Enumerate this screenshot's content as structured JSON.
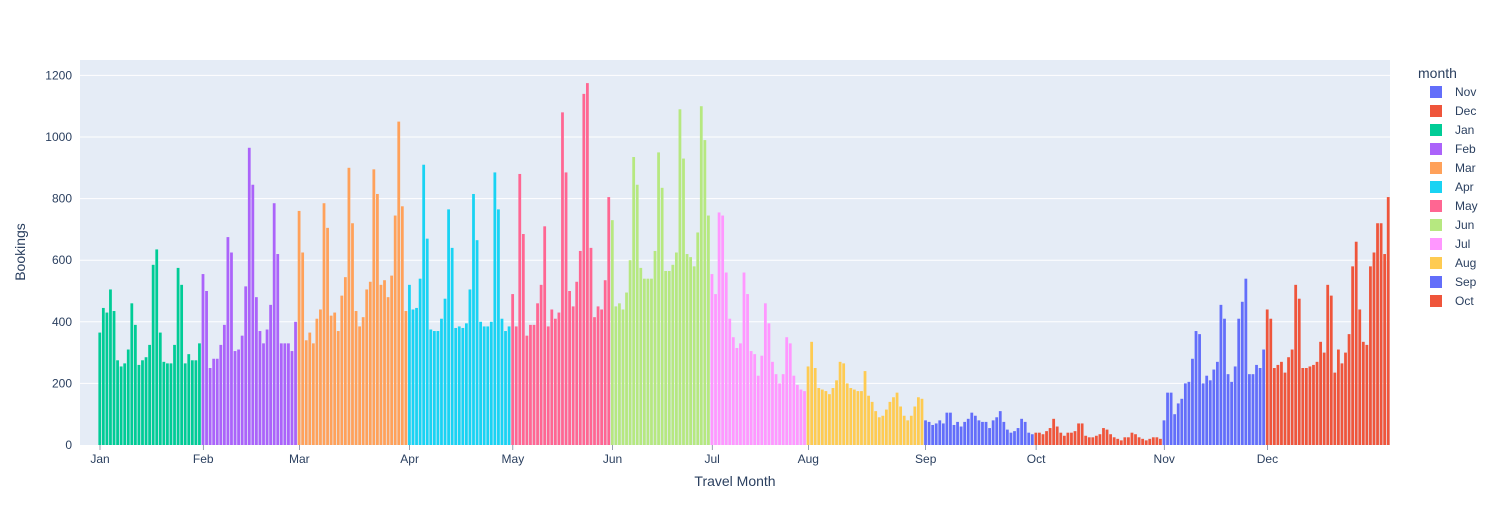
{
  "chart_data": {
    "type": "bar",
    "xlabel": "Travel Month",
    "ylabel": "Bookings",
    "ylim": [
      0,
      1250
    ],
    "yticks": [
      0,
      200,
      400,
      600,
      800,
      1000,
      1200
    ],
    "x_tick_labels": [
      "Jan",
      "Feb",
      "Mar",
      "Apr",
      "May",
      "Jun",
      "Jul",
      "Aug",
      "Sep",
      "Oct",
      "Nov",
      "Dec"
    ],
    "grid": true,
    "legend": {
      "title": "month",
      "placement": "right",
      "order": [
        "Nov",
        "Dec",
        "Jan",
        "Feb",
        "Mar",
        "Apr",
        "May",
        "Jun",
        "Jul",
        "Aug",
        "Sep",
        "Oct"
      ]
    },
    "colors": {
      "Jan": "#00CC96",
      "Feb": "#AB63FA",
      "Mar": "#FFA15A",
      "Apr": "#19D3F3",
      "May": "#FF6692",
      "Jun": "#B6E880",
      "Jul": "#FF97FF",
      "Aug": "#FECB52",
      "Sep": "#636EFA",
      "Oct": "#EF553B",
      "Nov": "#636EFA",
      "Dec": "#EF553B"
    },
    "series": [
      {
        "name": "Jan",
        "values": [
          365,
          445,
          430,
          505,
          435,
          275,
          255,
          265,
          310,
          460,
          390,
          260,
          275,
          285,
          325,
          585,
          635,
          365,
          270,
          265,
          265,
          325,
          575,
          520,
          265,
          295,
          275,
          275,
          330
        ]
      },
      {
        "name": "Feb",
        "values": [
          555,
          500,
          250,
          280,
          280,
          325,
          390,
          675,
          625,
          305,
          310,
          355,
          515,
          965,
          845,
          480,
          370,
          330,
          375,
          455,
          785,
          620,
          330,
          330,
          330,
          305,
          400
        ]
      },
      {
        "name": "Mar",
        "values": [
          760,
          625,
          340,
          365,
          330,
          410,
          440,
          785,
          705,
          420,
          430,
          370,
          485,
          545,
          900,
          720,
          435,
          385,
          415,
          505,
          530,
          895,
          815,
          520,
          535,
          480,
          550,
          745,
          1050,
          775,
          435
        ]
      },
      {
        "name": "Apr",
        "values": [
          520,
          440,
          445,
          540,
          910,
          670,
          375,
          370,
          370,
          410,
          475,
          765,
          640,
          380,
          385,
          380,
          395,
          505,
          815,
          665,
          400,
          385,
          385,
          400,
          885,
          765,
          410,
          370,
          385
        ]
      },
      {
        "name": "May",
        "values": [
          490,
          385,
          880,
          685,
          355,
          390,
          390,
          460,
          520,
          710,
          385,
          440,
          410,
          430,
          1080,
          885,
          500,
          450,
          530,
          630,
          1140,
          1175,
          640,
          415,
          450,
          440,
          535,
          805
        ]
      },
      {
        "name": "Jun",
        "values": [
          730,
          450,
          460,
          440,
          495,
          600,
          935,
          845,
          575,
          540,
          540,
          540,
          630,
          950,
          835,
          565,
          565,
          585,
          625,
          1090,
          930,
          620,
          610,
          580,
          690,
          1100,
          990,
          745
        ]
      },
      {
        "name": "Jul",
        "values": [
          555,
          490,
          755,
          745,
          560,
          410,
          350,
          315,
          330,
          560,
          490,
          305,
          295,
          225,
          290,
          460,
          395,
          270,
          230,
          200,
          230,
          350,
          330,
          225,
          195,
          180,
          175
        ]
      },
      {
        "name": "Aug",
        "values": [
          255,
          335,
          250,
          185,
          180,
          175,
          165,
          185,
          210,
          270,
          265,
          200,
          185,
          180,
          175,
          175,
          240,
          160,
          140,
          110,
          90,
          95,
          115,
          140,
          155,
          170,
          125,
          95,
          80,
          95,
          125,
          155,
          150
        ]
      },
      {
        "name": "Sep",
        "values": [
          80,
          75,
          65,
          70,
          80,
          70,
          105,
          105,
          65,
          75,
          60,
          75,
          85,
          105,
          95,
          80,
          75,
          75,
          55,
          80,
          90,
          110,
          75,
          50,
          40,
          45,
          55,
          85,
          75,
          40,
          35
        ]
      },
      {
        "name": "Oct",
        "values": [
          40,
          40,
          35,
          45,
          55,
          85,
          60,
          40,
          30,
          40,
          40,
          45,
          70,
          70,
          30,
          25,
          25,
          30,
          35,
          55,
          50,
          35,
          25,
          20,
          15,
          25,
          25,
          40,
          35,
          25,
          20,
          15,
          20,
          25,
          25,
          20
        ]
      },
      {
        "name": "Nov",
        "values": [
          80,
          170,
          170,
          100,
          135,
          150,
          200,
          205,
          280,
          370,
          360,
          200,
          225,
          210,
          245,
          270,
          455,
          410,
          230,
          205,
          255,
          410,
          465,
          540,
          230,
          230,
          260,
          250,
          310
        ]
      },
      {
        "name": "Dec",
        "values": [
          440,
          410,
          250,
          260,
          270,
          235,
          285,
          310,
          520,
          475,
          250,
          250,
          255,
          260,
          270,
          335,
          300,
          520,
          485,
          235,
          310,
          265,
          300,
          360,
          580,
          660,
          440,
          335,
          325,
          580,
          625,
          720,
          720,
          620,
          805
        ]
      }
    ]
  }
}
